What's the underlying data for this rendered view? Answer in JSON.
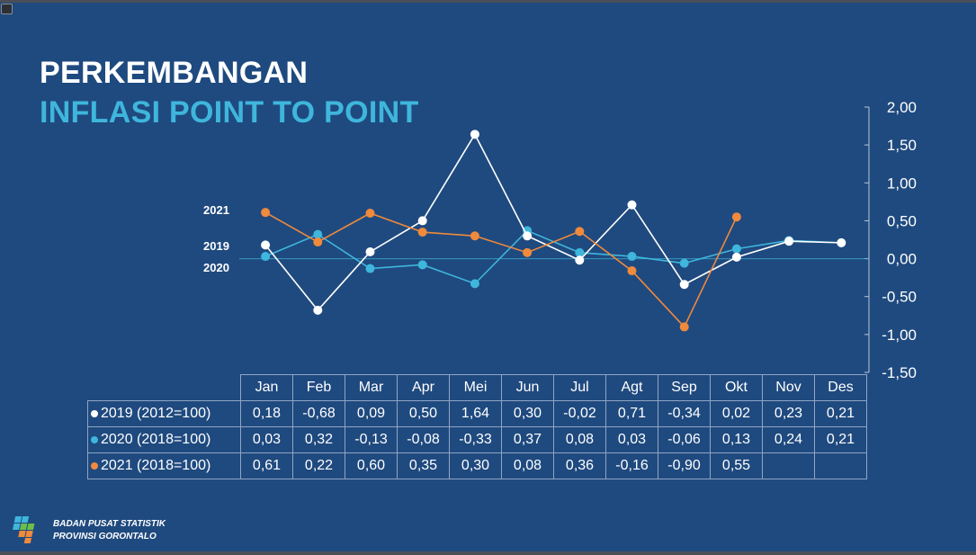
{
  "title_line1": "PERKEMBANGAN",
  "title_line2": "INFLASI POINT TO POINT",
  "organization": {
    "line1": "BADAN PUSAT STATISTIK",
    "line2": "PROVINSI GORONTALO"
  },
  "colors": {
    "background": "#1f4a7f",
    "s2019": "#ffffff",
    "s2020": "#3fb6dc",
    "s2021": "#f08a3c"
  },
  "chart_data": {
    "type": "line",
    "categories": [
      "Jan",
      "Feb",
      "Mar",
      "Apr",
      "Mei",
      "Jun",
      "Jul",
      "Agt",
      "Sep",
      "Okt",
      "Nov",
      "Des"
    ],
    "ylim": [
      -1.5,
      2.0
    ],
    "yticks": [
      "2,00",
      "1,50",
      "1,00",
      "0,50",
      "0,00",
      "-0,50",
      "-1,00",
      "-1,50"
    ],
    "ytick_values": [
      2.0,
      1.5,
      1.0,
      0.5,
      0.0,
      -0.5,
      -1.0,
      -1.5
    ],
    "series": [
      {
        "key": "s2019",
        "name": "2019 (2012=100)",
        "label": "2019",
        "values": [
          0.18,
          -0.68,
          0.09,
          0.5,
          1.64,
          0.3,
          -0.02,
          0.71,
          -0.34,
          0.02,
          0.23,
          0.21
        ],
        "display": [
          "0,18",
          "-0,68",
          "0,09",
          "0,50",
          "1,64",
          "0,30",
          "-0,02",
          "0,71",
          "-0,34",
          "0,02",
          "0,23",
          "0,21"
        ]
      },
      {
        "key": "s2020",
        "name": "2020 (2018=100)",
        "label": "2020",
        "values": [
          0.03,
          0.32,
          -0.13,
          -0.08,
          -0.33,
          0.37,
          0.08,
          0.03,
          -0.06,
          0.13,
          0.24,
          0.21
        ],
        "display": [
          "0,03",
          "0,32",
          "-0,13",
          "-0,08",
          "-0,33",
          "0,37",
          "0,08",
          "0,03",
          "-0,06",
          "0,13",
          "0,24",
          "0,21"
        ]
      },
      {
        "key": "s2021",
        "name": "2021 (2018=100)",
        "label": "2021",
        "values": [
          0.61,
          0.22,
          0.6,
          0.35,
          0.3,
          0.08,
          0.36,
          -0.16,
          -0.9,
          0.55,
          null,
          null
        ],
        "display": [
          "0,61",
          "0,22",
          "0,60",
          "0,35",
          "0,30",
          "0,08",
          "0,36",
          "-0,16",
          "-0,90",
          "0,55",
          "",
          ""
        ]
      }
    ]
  }
}
